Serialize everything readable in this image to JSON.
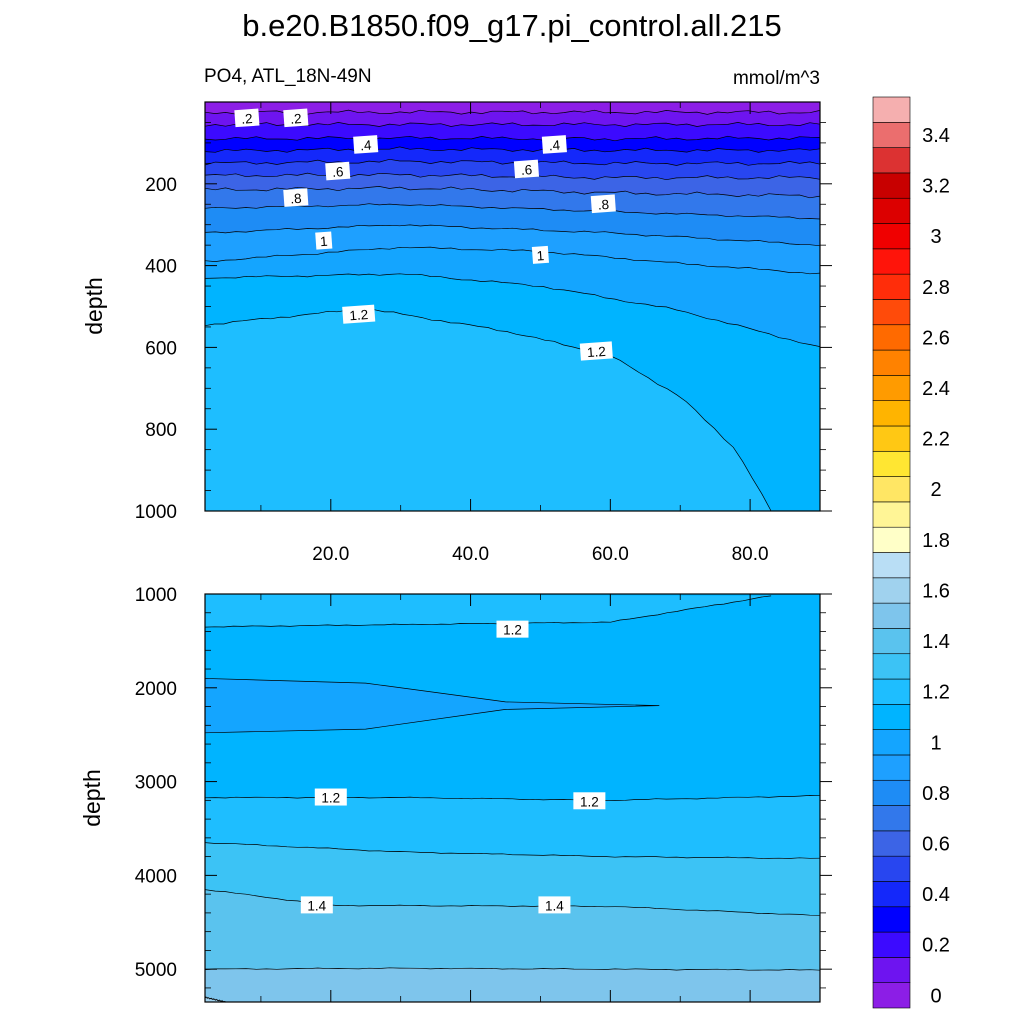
{
  "chart_data": {
    "type": "contour",
    "title": "b.e20.B1850.f09_g17.pi_control.all.215",
    "variable_label": "PO4, ATL_18N-49N",
    "units": "mmol/m^3",
    "colorbar": {
      "levels": [
        0,
        0.1,
        0.2,
        0.3,
        0.4,
        0.5,
        0.6,
        0.7,
        0.8,
        0.9,
        1.0,
        1.1,
        1.2,
        1.3,
        1.4,
        1.5,
        1.6,
        1.7,
        1.8,
        1.9,
        2.0,
        2.1,
        2.2,
        2.3,
        2.4,
        2.5,
        2.6,
        2.7,
        2.8,
        2.9,
        3.0,
        3.1,
        3.2,
        3.3,
        3.4,
        3.5
      ],
      "labels": [
        "0",
        "0.2",
        "0.4",
        "0.6",
        "0.8",
        "1",
        "1.2",
        "1.4",
        "1.6",
        "1.8",
        "2",
        "2.2",
        "2.4",
        "2.6",
        "2.8",
        "3",
        "3.2",
        "3.4"
      ],
      "label_values": [
        0,
        0.2,
        0.4,
        0.6,
        0.8,
        1.0,
        1.2,
        1.4,
        1.6,
        1.8,
        2.0,
        2.2,
        2.4,
        2.6,
        2.8,
        3.0,
        3.2,
        3.4
      ],
      "colors": [
        "#8c1ee6",
        "#6e14f0",
        "#3c0aff",
        "#0000ff",
        "#1428fa",
        "#2846f0",
        "#3c64e6",
        "#3278eb",
        "#1e8cf5",
        "#1ea0ff",
        "#14a5ff",
        "#00b4ff",
        "#1ebeff",
        "#3cc3f5",
        "#5ac3ee",
        "#7ec5ec",
        "#a0d2ee",
        "#b9def5",
        "#ffffc8",
        "#fff596",
        "#ffe664",
        "#ffe632",
        "#ffc814",
        "#ffb400",
        "#ff9b00",
        "#ff8200",
        "#ff6a00",
        "#ff4b0a",
        "#ff2d0a",
        "#ff140a",
        "#f00000",
        "#dc0000",
        "#c80000",
        "#dc3232",
        "#eb6e6e",
        "#f5afaf"
      ]
    },
    "panels": [
      {
        "name": "upper",
        "x_range": [
          2,
          90
        ],
        "x_ticks": [
          20,
          40,
          60,
          80
        ],
        "x_tick_labels": [
          "20.0",
          "40.0",
          "60.0",
          "80.0"
        ],
        "y_range": [
          0,
          1000
        ],
        "y_ticks": [
          200,
          400,
          600,
          800,
          1000
        ],
        "y_tick_labels": [
          "200",
          "400",
          "600",
          "800",
          "1000"
        ],
        "ylabel": "depth",
        "contour_levels": [
          0.1,
          0.2,
          0.3,
          0.4,
          0.5,
          0.6,
          0.7,
          0.8,
          0.9,
          1.0,
          1.1,
          1.2
        ],
        "contour_depths": [
          {
            "level": 0.1,
            "depth_at_x": [
              [
                2,
                25
              ],
              [
                90,
                25
              ]
            ]
          },
          {
            "level": 0.2,
            "depth_at_x": [
              [
                2,
                55
              ],
              [
                90,
                55
              ]
            ]
          },
          {
            "level": 0.3,
            "depth_at_x": [
              [
                2,
                90
              ],
              [
                30,
                88
              ],
              [
                60,
                90
              ],
              [
                90,
                88
              ]
            ]
          },
          {
            "level": 0.4,
            "depth_at_x": [
              [
                2,
                120
              ],
              [
                30,
                115
              ],
              [
                60,
                118
              ],
              [
                90,
                118
              ]
            ]
          },
          {
            "level": 0.5,
            "depth_at_x": [
              [
                2,
                150
              ],
              [
                30,
                145
              ],
              [
                60,
                150
              ],
              [
                90,
                150
              ]
            ]
          },
          {
            "level": 0.6,
            "depth_at_x": [
              [
                2,
                180
              ],
              [
                30,
                178
              ],
              [
                60,
                185
              ],
              [
                90,
                185
              ]
            ]
          },
          {
            "level": 0.7,
            "depth_at_x": [
              [
                2,
                215
              ],
              [
                30,
                210
              ],
              [
                60,
                222
              ],
              [
                90,
                230
              ]
            ]
          },
          {
            "level": 0.8,
            "depth_at_x": [
              [
                2,
                260
              ],
              [
                30,
                250
              ],
              [
                60,
                268
              ],
              [
                90,
                285
              ]
            ]
          },
          {
            "level": 0.9,
            "depth_at_x": [
              [
                2,
                320
              ],
              [
                30,
                300
              ],
              [
                60,
                320
              ],
              [
                90,
                350
              ]
            ]
          },
          {
            "level": 1.0,
            "depth_at_x": [
              [
                2,
                390
              ],
              [
                30,
                355
              ],
              [
                50,
                365
              ],
              [
                70,
                395
              ],
              [
                90,
                420
              ]
            ]
          },
          {
            "level": 1.1,
            "depth_at_x": [
              [
                2,
                430
              ],
              [
                30,
                420
              ],
              [
                50,
                450
              ],
              [
                70,
                510
              ],
              [
                90,
                600
              ]
            ]
          },
          {
            "level": 1.2,
            "depth_at_x": [
              [
                2,
                545
              ],
              [
                25,
                505
              ],
              [
                45,
                560
              ],
              [
                60,
                620
              ],
              [
                70,
                720
              ],
              [
                78,
                850
              ],
              [
                83,
                1000
              ]
            ]
          }
        ],
        "contour_labels": [
          {
            "text": ".2",
            "x": 8,
            "depth": 40
          },
          {
            "text": ".2",
            "x": 15,
            "depth": 40
          },
          {
            "text": ".4",
            "x": 25,
            "depth": 105
          },
          {
            "text": ".4",
            "x": 52,
            "depth": 105
          },
          {
            "text": ".6",
            "x": 21,
            "depth": 170
          },
          {
            "text": ".6",
            "x": 48,
            "depth": 165
          },
          {
            "text": ".8",
            "x": 15,
            "depth": 235
          },
          {
            "text": ".8",
            "x": 59,
            "depth": 250
          },
          {
            "text": "1",
            "x": 19,
            "depth": 340
          },
          {
            "text": "1",
            "x": 50,
            "depth": 375
          },
          {
            "text": "1.2",
            "x": 24,
            "depth": 520
          },
          {
            "text": "1.2",
            "x": 58,
            "depth": 610
          }
        ]
      },
      {
        "name": "lower",
        "x_range": [
          2,
          90
        ],
        "y_range": [
          1000,
          5350
        ],
        "y_ticks": [
          1000,
          2000,
          3000,
          4000,
          5000
        ],
        "y_tick_labels": [
          "1000",
          "2000",
          "3000",
          "4000",
          "5000"
        ],
        "ylabel": "depth",
        "contour_levels": [
          1.1,
          1.2,
          1.3,
          1.4,
          1.5,
          1.6
        ],
        "regions": [
          {
            "fill_level": 1.1,
            "description": "top band",
            "depth_at_x": [
              [
                2,
                1350
              ],
              [
                60,
                1300
              ],
              [
                83,
                1020
              ]
            ]
          },
          {
            "fill_level": 1.0,
            "description": "tongue",
            "upper": [
              [
                2,
                1900
              ],
              [
                25,
                1950
              ],
              [
                45,
                2150
              ],
              [
                67,
                2190
              ]
            ],
            "lower": [
              [
                2,
                2480
              ],
              [
                25,
                2440
              ],
              [
                45,
                2230
              ],
              [
                67,
                2190
              ]
            ]
          },
          {
            "fill_level": 1.2,
            "depth_at_x": [
              [
                2,
                3170
              ],
              [
                30,
                3170
              ],
              [
                60,
                3200
              ],
              [
                90,
                3150
              ]
            ]
          },
          {
            "fill_level": 1.3,
            "depth_at_x": [
              [
                2,
                3650
              ],
              [
                30,
                3750
              ],
              [
                60,
                3800
              ],
              [
                90,
                3820
              ]
            ]
          },
          {
            "fill_level": 1.4,
            "depth_at_x": [
              [
                2,
                4150
              ],
              [
                20,
                4320
              ],
              [
                60,
                4330
              ],
              [
                90,
                4430
              ]
            ]
          },
          {
            "fill_level": 1.5,
            "depth_at_x": [
              [
                2,
                5000
              ],
              [
                30,
                4990
              ],
              [
                90,
                5010
              ]
            ]
          },
          {
            "fill_level": 1.6,
            "depth_at_x": [
              [
                2,
                5300
              ],
              [
                5,
                5350
              ]
            ]
          }
        ],
        "contour_labels": [
          {
            "text": "1.2",
            "x": 46,
            "depth": 1380
          },
          {
            "text": "1.2",
            "x": 20,
            "depth": 3170
          },
          {
            "text": "1.2",
            "x": 57,
            "depth": 3210
          },
          {
            "text": "1.4",
            "x": 18,
            "depth": 4320
          },
          {
            "text": "1.4",
            "x": 52,
            "depth": 4320
          }
        ]
      }
    ]
  }
}
